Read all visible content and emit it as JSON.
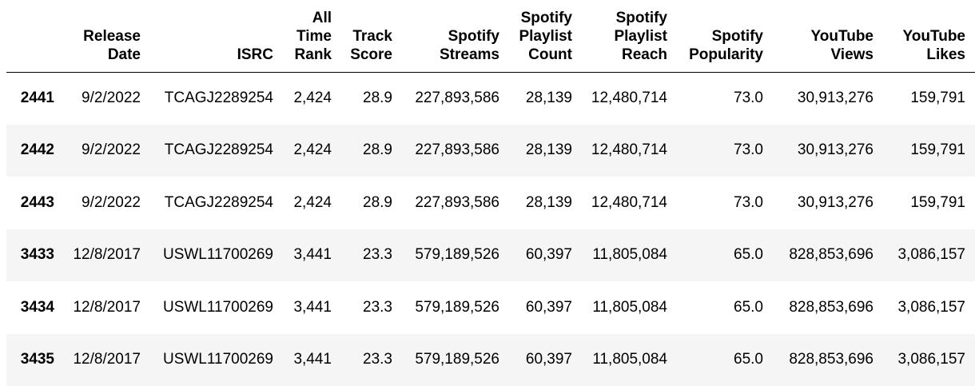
{
  "table": {
    "headers": [
      {
        "key": "index",
        "lines": []
      },
      {
        "key": "release_date",
        "lines": [
          "Release",
          "Date"
        ]
      },
      {
        "key": "isrc",
        "lines": [
          "ISRC"
        ]
      },
      {
        "key": "all_time_rank",
        "lines": [
          "All",
          "Time",
          "Rank"
        ]
      },
      {
        "key": "track_score",
        "lines": [
          "Track",
          "Score"
        ]
      },
      {
        "key": "spotify_streams",
        "lines": [
          "Spotify",
          "Streams"
        ]
      },
      {
        "key": "spotify_playlist_count",
        "lines": [
          "Spotify",
          "Playlist",
          "Count"
        ]
      },
      {
        "key": "spotify_playlist_reach",
        "lines": [
          "Spotify",
          "Playlist",
          "Reach"
        ]
      },
      {
        "key": "spotify_popularity",
        "lines": [
          "Spotify",
          "Popularity"
        ]
      },
      {
        "key": "youtube_views",
        "lines": [
          "YouTube",
          "Views"
        ]
      },
      {
        "key": "youtube_likes",
        "lines": [
          "YouTube",
          "Likes"
        ]
      }
    ],
    "rows": [
      {
        "index": "2441",
        "cells": [
          "9/2/2022",
          "TCAGJ2289254",
          "2,424",
          "28.9",
          "227,893,586",
          "28,139",
          "12,480,714",
          "73.0",
          "30,913,276",
          "159,791"
        ]
      },
      {
        "index": "2442",
        "cells": [
          "9/2/2022",
          "TCAGJ2289254",
          "2,424",
          "28.9",
          "227,893,586",
          "28,139",
          "12,480,714",
          "73.0",
          "30,913,276",
          "159,791"
        ]
      },
      {
        "index": "2443",
        "cells": [
          "9/2/2022",
          "TCAGJ2289254",
          "2,424",
          "28.9",
          "227,893,586",
          "28,139",
          "12,480,714",
          "73.0",
          "30,913,276",
          "159,791"
        ]
      },
      {
        "index": "3433",
        "cells": [
          "12/8/2017",
          "USWL11700269",
          "3,441",
          "23.3",
          "579,189,526",
          "60,397",
          "11,805,084",
          "65.0",
          "828,853,696",
          "3,086,157"
        ]
      },
      {
        "index": "3434",
        "cells": [
          "12/8/2017",
          "USWL11700269",
          "3,441",
          "23.3",
          "579,189,526",
          "60,397",
          "11,805,084",
          "65.0",
          "828,853,696",
          "3,086,157"
        ]
      },
      {
        "index": "3435",
        "cells": [
          "12/8/2017",
          "USWL11700269",
          "3,441",
          "23.3",
          "579,189,526",
          "60,397",
          "11,805,084",
          "65.0",
          "828,853,696",
          "3,086,157"
        ]
      }
    ]
  },
  "colors": {
    "stripe": "#f5f5f5",
    "text": "#000000",
    "header_rule": "#000000"
  }
}
